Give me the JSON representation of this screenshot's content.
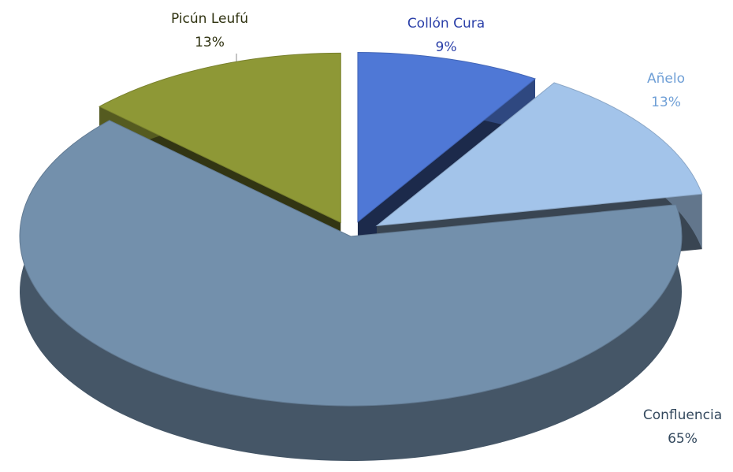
{
  "chart_data": {
    "type": "pie",
    "categories": [
      "Collón Cura",
      "Añelo",
      "Confluencia",
      "Picún Leufú"
    ],
    "values": [
      9,
      13,
      65,
      13
    ],
    "value_labels": [
      "9%",
      "13%",
      "65%",
      "13%"
    ],
    "colors": [
      "#4f78d6",
      "#a3c4ea",
      "#7390ac",
      "#8e9836"
    ],
    "label_colors": [
      "#2a3fa8",
      "#6f9fd6",
      "#34495e",
      "#2f3210"
    ]
  }
}
